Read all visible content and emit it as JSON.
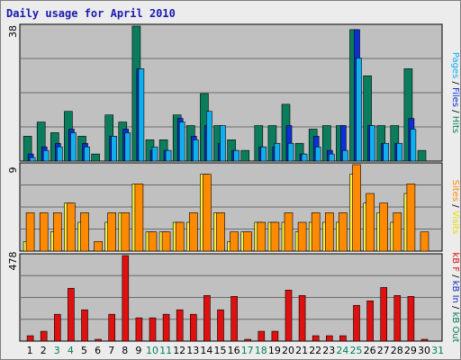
{
  "chart_data": {
    "type": "bar",
    "title": "Daily usage for April 2010",
    "days": [
      "1",
      "2",
      "3",
      "4",
      "5",
      "6",
      "7",
      "8",
      "9",
      "10",
      "11",
      "12",
      "13",
      "14",
      "15",
      "16",
      "17",
      "18",
      "19",
      "20",
      "21",
      "22",
      "23",
      "24",
      "25",
      "26",
      "27",
      "28",
      "29",
      "30",
      "31"
    ],
    "weekend_days": [
      "3",
      "4",
      "10",
      "11",
      "17",
      "18",
      "24",
      "25",
      "31"
    ],
    "colors": {
      "hits": "#0b7d5c",
      "files": "#0b2fd8",
      "pages": "#10b0f0",
      "visits": "#f8ee40",
      "sites": "#ff8a00",
      "kbf": "#e11010",
      "kbin": "#1a30c0",
      "kbout": "#0b7d5c",
      "panel_bg": "#c0c0c0",
      "weekend": "#00805c",
      "weekday": "#000000",
      "title": "#1a1ab0"
    },
    "panels": [
      {
        "id": "hits-files-pages",
        "max_label": "38",
        "ymax": 38,
        "side_labels": [
          {
            "text": "Pages",
            "color": "#10b0f0"
          },
          {
            "text": " / ",
            "color": "#000000"
          },
          {
            "text": "Files",
            "color": "#0b2fd8"
          },
          {
            "text": " / ",
            "color": "#000000"
          },
          {
            "text": "Hits",
            "color": "#0b7d5c"
          }
        ],
        "series": [
          {
            "name": "Hits",
            "color": "#0b7d5c",
            "values": [
              7,
              11,
              8,
              14,
              7,
              2,
              13,
              11,
              38,
              6,
              6,
              13,
              10,
              19,
              10,
              6,
              3,
              10,
              10,
              16,
              5,
              9,
              10,
              10,
              37,
              24,
              10,
              10,
              26,
              3,
              null
            ]
          },
          {
            "name": "Files",
            "color": "#0b2fd8",
            "values": [
              2,
              4,
              5,
              9,
              5,
              null,
              7,
              9,
              26,
              3,
              3,
              12,
              7,
              10,
              5,
              3,
              null,
              4,
              4,
              10,
              2,
              7,
              3,
              10,
              37,
              10,
              5,
              5,
              12,
              null,
              null
            ]
          },
          {
            "name": "Pages",
            "color": "#10b0f0",
            "values": [
              1,
              3,
              4,
              8,
              4,
              null,
              7,
              8,
              26,
              4,
              3,
              11,
              6,
              14,
              10,
              3,
              null,
              4,
              5,
              5,
              2,
              4,
              2,
              3,
              29,
              10,
              5,
              5,
              9,
              null,
              null
            ]
          }
        ]
      },
      {
        "id": "visits-sites",
        "max_label": "9",
        "ymax": 9,
        "side_labels": [
          {
            "text": "Sites",
            "color": "#ff8a00"
          },
          {
            "text": " / ",
            "color": "#000000"
          },
          {
            "text": "Visits",
            "color": "#e8d800"
          }
        ],
        "series": [
          {
            "name": "Visits",
            "color": "#f8ee40",
            "values": [
              1,
              null,
              2,
              5,
              3,
              null,
              3,
              4,
              7,
              2,
              2,
              3,
              3,
              8,
              4,
              1,
              2,
              3,
              3,
              3,
              2,
              3,
              3,
              3,
              8,
              5,
              4,
              3,
              6,
              null,
              null
            ]
          },
          {
            "name": "Sites",
            "color": "#ff8a00",
            "values": [
              4,
              4,
              4,
              5,
              4,
              1,
              4,
              4,
              7,
              2,
              2,
              3,
              4,
              8,
              4,
              2,
              2,
              3,
              3,
              4,
              3,
              4,
              4,
              4,
              9,
              6,
              5,
              4,
              7,
              2,
              null
            ]
          }
        ]
      },
      {
        "id": "kbf-kbin-kbout",
        "max_label": "478",
        "ymax": 478,
        "side_labels": [
          {
            "text": "kB F",
            "color": "#e11010"
          },
          {
            "text": " / ",
            "color": "#000000"
          },
          {
            "text": "kB In",
            "color": "#1a30c0"
          },
          {
            "text": " / ",
            "color": "#000000"
          },
          {
            "text": "kB Out",
            "color": "#0b7d5c"
          }
        ],
        "series": [
          {
            "name": "kB F",
            "color": "#e11010",
            "values": [
              30,
              55,
              150,
              295,
              175,
              8,
              150,
              478,
              130,
              130,
              150,
              175,
              150,
              255,
              175,
              250,
              8,
              55,
              55,
              285,
              255,
              30,
              30,
              30,
              200,
              225,
              300,
              255,
              250,
              8,
              null
            ]
          }
        ]
      }
    ]
  }
}
